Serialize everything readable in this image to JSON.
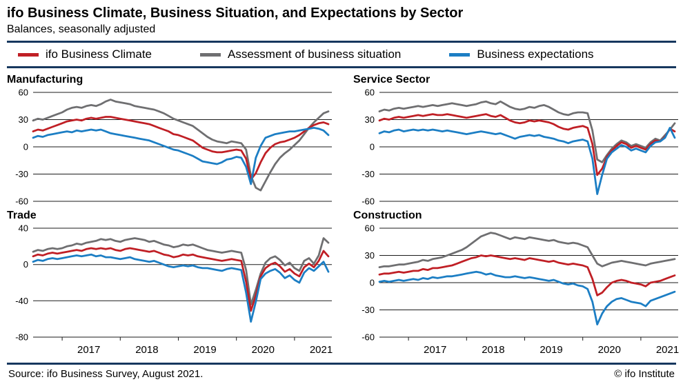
{
  "header": {
    "title": "ifo Business Climate, Business Situation, and Expectations by Sector",
    "subtitle": "Balances, seasonally adjusted"
  },
  "legend": {
    "items": [
      {
        "key": "climate",
        "label": "ifo Business Climate"
      },
      {
        "key": "situation",
        "label": "Assessment of business situation"
      },
      {
        "key": "expectations",
        "label": "Business expectations"
      }
    ]
  },
  "colors": {
    "climate": "#c01f25",
    "situation": "#6f6f71",
    "expectations": "#1c7ec4",
    "rule": "#16375e",
    "grid": "#1a1a1a",
    "text": "#000000"
  },
  "footer": {
    "source": "Source: ifo Business Survey, August 2021.",
    "copyright": "© ifo Institute"
  },
  "chart_data": [
    {
      "type": "line",
      "title": "Manufacturing",
      "x_start": "2016-07",
      "x_end": "2021-08",
      "x_freq": "monthly",
      "x_tick_years": [
        2017,
        2018,
        2019,
        2020,
        2021
      ],
      "ylim": [
        -60,
        60
      ],
      "yticks": [
        60,
        30,
        0,
        -30,
        -60
      ],
      "grid": true,
      "series": [
        {
          "key": "situation",
          "name": "Assessment of business situation",
          "values": [
            29,
            31,
            30,
            32,
            34,
            36,
            38,
            41,
            43,
            44,
            43,
            45,
            46,
            45,
            47,
            50,
            52,
            50,
            49,
            48,
            47,
            45,
            44,
            43,
            42,
            41,
            39,
            37,
            34,
            31,
            29,
            27,
            25,
            23,
            19,
            15,
            11,
            8,
            6,
            5,
            4,
            6,
            5,
            4,
            -3,
            -32,
            -45,
            -48,
            -38,
            -28,
            -19,
            -12,
            -7,
            -3,
            2,
            7,
            14,
            21,
            27,
            32,
            37,
            39
          ]
        },
        {
          "key": "climate",
          "name": "ifo Business Climate",
          "values": [
            17,
            19,
            18,
            20,
            22,
            24,
            26,
            28,
            29,
            30,
            29,
            31,
            32,
            31,
            32,
            33,
            33,
            32,
            31,
            30,
            29,
            28,
            27,
            26,
            25,
            23,
            21,
            19,
            17,
            14,
            13,
            11,
            9,
            7,
            3,
            -1,
            -3,
            -5,
            -6,
            -6,
            -5,
            -4,
            -3,
            -4,
            -13,
            -36,
            -29,
            -17,
            -7,
            -1,
            3,
            5,
            6,
            8,
            10,
            13,
            17,
            21,
            24,
            26,
            27,
            25
          ]
        },
        {
          "key": "expectations",
          "name": "Business expectations",
          "values": [
            10,
            12,
            11,
            13,
            14,
            15,
            16,
            17,
            16,
            18,
            17,
            18,
            19,
            18,
            19,
            17,
            15,
            14,
            13,
            12,
            11,
            10,
            9,
            8,
            7,
            5,
            3,
            1,
            -1,
            -3,
            -4,
            -6,
            -8,
            -10,
            -13,
            -16,
            -17,
            -18,
            -19,
            -17,
            -14,
            -13,
            -11,
            -12,
            -22,
            -41,
            -12,
            1,
            10,
            12,
            14,
            15,
            16,
            17,
            17,
            18,
            19,
            20,
            21,
            20,
            18,
            13
          ]
        }
      ]
    },
    {
      "type": "line",
      "title": "Service Sector",
      "x_start": "2016-07",
      "x_end": "2021-08",
      "x_freq": "monthly",
      "x_tick_years": [
        2017,
        2018,
        2019,
        2020,
        2021
      ],
      "ylim": [
        -60,
        60
      ],
      "yticks": [
        60,
        30,
        0,
        -30,
        -60
      ],
      "grid": true,
      "series": [
        {
          "key": "situation",
          "name": "Assessment of business situation",
          "values": [
            39,
            41,
            40,
            42,
            43,
            42,
            43,
            44,
            45,
            44,
            45,
            46,
            45,
            46,
            47,
            48,
            47,
            46,
            45,
            46,
            47,
            49,
            50,
            48,
            47,
            50,
            47,
            44,
            42,
            41,
            42,
            44,
            43,
            45,
            46,
            44,
            41,
            38,
            36,
            35,
            37,
            38,
            38,
            37,
            18,
            -14,
            -17,
            -9,
            -2,
            3,
            7,
            5,
            1,
            3,
            1,
            -1,
            5,
            9,
            7,
            13,
            19,
            26
          ]
        },
        {
          "key": "climate",
          "name": "ifo Business Climate",
          "values": [
            29,
            31,
            30,
            32,
            33,
            32,
            33,
            34,
            35,
            34,
            35,
            36,
            35,
            35,
            36,
            35,
            34,
            33,
            32,
            33,
            34,
            35,
            36,
            34,
            33,
            35,
            32,
            29,
            27,
            26,
            27,
            29,
            28,
            29,
            28,
            27,
            25,
            22,
            20,
            19,
            21,
            22,
            23,
            21,
            3,
            -31,
            -24,
            -11,
            -4,
            1,
            5,
            3,
            -1,
            1,
            -1,
            -3,
            3,
            7,
            6,
            11,
            20,
            17
          ]
        },
        {
          "key": "expectations",
          "name": "Business expectations",
          "values": [
            15,
            17,
            16,
            18,
            19,
            17,
            18,
            19,
            18,
            19,
            18,
            19,
            18,
            17,
            18,
            17,
            16,
            15,
            14,
            15,
            16,
            17,
            16,
            15,
            14,
            15,
            13,
            11,
            9,
            11,
            12,
            13,
            12,
            13,
            11,
            10,
            9,
            7,
            6,
            4,
            6,
            7,
            8,
            6,
            -13,
            -52,
            -31,
            -13,
            -6,
            -2,
            2,
            0,
            -4,
            -2,
            -4,
            -6,
            1,
            5,
            6,
            10,
            21,
            10
          ]
        }
      ]
    },
    {
      "type": "line",
      "title": "Trade",
      "x_start": "2016-07",
      "x_end": "2021-08",
      "x_freq": "monthly",
      "x_tick_years": [
        2017,
        2018,
        2019,
        2020,
        2021
      ],
      "ylim": [
        -80,
        40
      ],
      "yticks": [
        40,
        0,
        -40,
        -80
      ],
      "grid": true,
      "series": [
        {
          "key": "situation",
          "name": "Assessment of business situation",
          "values": [
            14,
            16,
            15,
            17,
            18,
            17,
            18,
            20,
            21,
            23,
            22,
            24,
            25,
            26,
            28,
            27,
            28,
            26,
            25,
            27,
            28,
            29,
            28,
            27,
            25,
            26,
            24,
            22,
            21,
            19,
            20,
            22,
            21,
            22,
            20,
            18,
            16,
            15,
            14,
            13,
            14,
            15,
            14,
            13,
            -6,
            -44,
            -28,
            -10,
            2,
            7,
            9,
            5,
            -1,
            2,
            -4,
            -7,
            4,
            7,
            1,
            10,
            29,
            24
          ]
        },
        {
          "key": "climate",
          "name": "ifo Business Climate",
          "values": [
            9,
            11,
            10,
            12,
            13,
            12,
            13,
            14,
            15,
            16,
            15,
            17,
            18,
            17,
            18,
            17,
            18,
            16,
            15,
            17,
            18,
            17,
            16,
            15,
            14,
            15,
            13,
            11,
            10,
            8,
            9,
            11,
            10,
            11,
            9,
            8,
            7,
            6,
            5,
            4,
            5,
            6,
            5,
            4,
            -19,
            -51,
            -34,
            -13,
            -4,
            0,
            2,
            -2,
            -8,
            -5,
            -10,
            -13,
            -3,
            1,
            -3,
            4,
            15,
            9
          ]
        },
        {
          "key": "expectations",
          "name": "Business expectations",
          "values": [
            3,
            5,
            4,
            6,
            7,
            6,
            7,
            8,
            9,
            10,
            9,
            10,
            11,
            9,
            10,
            8,
            8,
            7,
            6,
            7,
            8,
            6,
            5,
            4,
            3,
            4,
            2,
            0,
            -2,
            -3,
            -2,
            -1,
            -2,
            -1,
            -3,
            -4,
            -4,
            -5,
            -6,
            -7,
            -5,
            -4,
            -5,
            -6,
            -31,
            -63,
            -41,
            -16,
            -10,
            -7,
            -5,
            -9,
            -15,
            -12,
            -17,
            -20,
            -9,
            -4,
            -7,
            -2,
            3,
            -8
          ]
        }
      ]
    },
    {
      "type": "line",
      "title": "Construction",
      "x_start": "2016-07",
      "x_end": "2021-08",
      "x_freq": "monthly",
      "x_tick_years": [
        2017,
        2018,
        2019,
        2020,
        2021
      ],
      "ylim": [
        -60,
        60
      ],
      "yticks": [
        60,
        30,
        0,
        -30,
        -60
      ],
      "grid": true,
      "series": [
        {
          "key": "situation",
          "name": "Assessment of business situation",
          "values": [
            17,
            18,
            18,
            19,
            20,
            20,
            21,
            22,
            23,
            25,
            24,
            26,
            27,
            28,
            30,
            32,
            34,
            36,
            39,
            43,
            47,
            51,
            53,
            55,
            54,
            52,
            50,
            48,
            50,
            49,
            48,
            50,
            49,
            48,
            47,
            46,
            47,
            45,
            44,
            43,
            44,
            43,
            41,
            39,
            30,
            21,
            18,
            20,
            22,
            23,
            24,
            23,
            22,
            21,
            20,
            19,
            21,
            22,
            23,
            24,
            25,
            26
          ]
        },
        {
          "key": "climate",
          "name": "ifo Business Climate",
          "values": [
            9,
            10,
            10,
            11,
            12,
            11,
            12,
            13,
            13,
            15,
            14,
            16,
            16,
            17,
            18,
            19,
            21,
            23,
            25,
            27,
            28,
            30,
            29,
            30,
            29,
            28,
            27,
            26,
            27,
            26,
            25,
            27,
            26,
            25,
            24,
            23,
            24,
            22,
            21,
            20,
            21,
            20,
            19,
            17,
            4,
            -14,
            -11,
            -5,
            0,
            2,
            3,
            2,
            0,
            -1,
            -2,
            -4,
            0,
            1,
            2,
            4,
            6,
            8
          ]
        },
        {
          "key": "expectations",
          "name": "Business expectations",
          "values": [
            1,
            2,
            1,
            2,
            3,
            2,
            3,
            4,
            3,
            5,
            4,
            6,
            5,
            6,
            7,
            7,
            8,
            9,
            10,
            11,
            12,
            11,
            9,
            10,
            8,
            7,
            6,
            6,
            7,
            6,
            5,
            6,
            5,
            4,
            3,
            2,
            3,
            1,
            -1,
            -2,
            -1,
            -3,
            -4,
            -7,
            -21,
            -46,
            -34,
            -26,
            -21,
            -18,
            -17,
            -19,
            -21,
            -22,
            -23,
            -26,
            -20,
            -18,
            -16,
            -14,
            -12,
            -10
          ]
        }
      ]
    }
  ]
}
